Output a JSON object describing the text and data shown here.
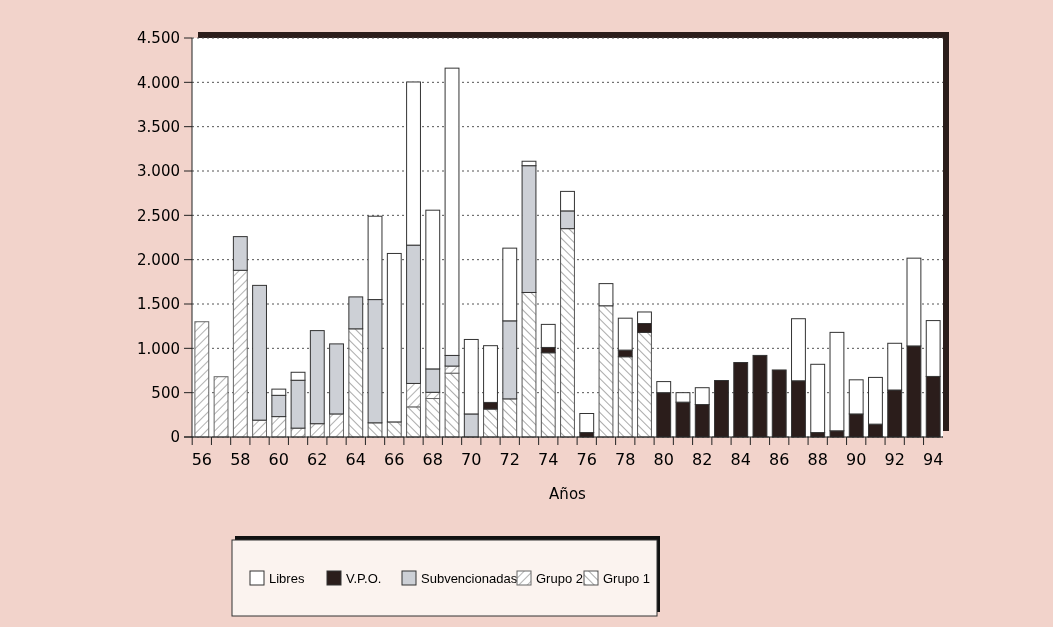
{
  "chart_data": {
    "type": "bar",
    "stacked": true,
    "xlabel": "Años",
    "categories": [
      "56",
      null,
      "58",
      null,
      "60",
      null,
      "62",
      null,
      "64",
      null,
      "66",
      null,
      "68",
      null,
      "70",
      null,
      "72",
      null,
      "74",
      null,
      "76",
      null,
      "78",
      null,
      "80",
      null,
      "82",
      null,
      "84",
      null,
      "86",
      null,
      "88",
      null,
      "90",
      null,
      "92",
      null,
      "94"
    ],
    "series": [
      {
        "name": "Grupo 1",
        "color": "#555555",
        "values": [
          null,
          null,
          null,
          null,
          null,
          null,
          null,
          null,
          1220,
          160,
          170,
          340,
          434,
          720,
          null,
          315,
          430,
          1630,
          950,
          2350,
          null,
          1480,
          905,
          1180,
          null,
          null,
          null,
          null,
          null,
          null,
          null,
          null,
          null,
          null,
          null,
          null,
          null,
          null,
          null
        ]
      },
      {
        "name": "Grupo 2",
        "color": "#666666",
        "values": [
          1300,
          680,
          1880,
          190,
          230,
          100,
          150,
          260,
          null,
          null,
          null,
          264,
          70,
          80,
          null,
          null,
          null,
          null,
          null,
          null,
          null,
          null,
          null,
          null,
          null,
          null,
          null,
          null,
          null,
          null,
          null,
          null,
          null,
          null,
          null,
          null,
          null,
          null,
          null
        ]
      },
      {
        "name": "Subvencionadas",
        "color": "#cdd0d6",
        "values": [
          null,
          null,
          380,
          1520,
          240,
          540,
          1050,
          790,
          360,
          1390,
          null,
          1560,
          264,
          120,
          260,
          null,
          880,
          1430,
          null,
          200,
          null,
          null,
          null,
          null,
          null,
          null,
          null,
          null,
          null,
          null,
          null,
          null,
          null,
          null,
          null,
          null,
          null,
          null,
          null
        ]
      },
      {
        "name": "V.P.O.",
        "color": "#2b1d1b",
        "values": [
          null,
          null,
          null,
          null,
          null,
          null,
          null,
          null,
          null,
          null,
          null,
          null,
          null,
          null,
          null,
          75,
          null,
          null,
          60,
          null,
          50,
          null,
          75,
          100,
          500,
          393,
          366,
          637,
          840,
          920,
          756,
          634,
          50,
          70,
          260,
          145,
          530,
          1027,
          683
        ]
      },
      {
        "name": "Libres",
        "color": "#ffffff",
        "values": [
          null,
          null,
          null,
          null,
          70,
          90,
          null,
          null,
          null,
          940,
          1900,
          1840,
          1790,
          3240,
          840,
          640,
          820,
          50,
          260,
          220,
          215,
          250,
          360,
          130,
          125,
          107,
          190,
          null,
          null,
          null,
          null,
          700,
          770,
          1110,
          385,
          527,
          527,
          990,
          630
        ]
      }
    ],
    "ylim": [
      0,
      4500
    ],
    "yticks": [
      0,
      500,
      {
        "value": 1000,
        "label": "1.000"
      },
      {
        "value": 1500,
        "label": "1.500"
      },
      {
        "value": 2000,
        "label": "2.000"
      },
      {
        "value": 2500,
        "label": "2.500"
      },
      {
        "value": 3000,
        "label": "3.000"
      },
      {
        "value": 3500,
        "label": "3.500"
      },
      {
        "value": 4000,
        "label": "4.000"
      },
      {
        "value": 4500,
        "label": "4.500"
      }
    ],
    "grid": "y",
    "legend": "bottom"
  }
}
